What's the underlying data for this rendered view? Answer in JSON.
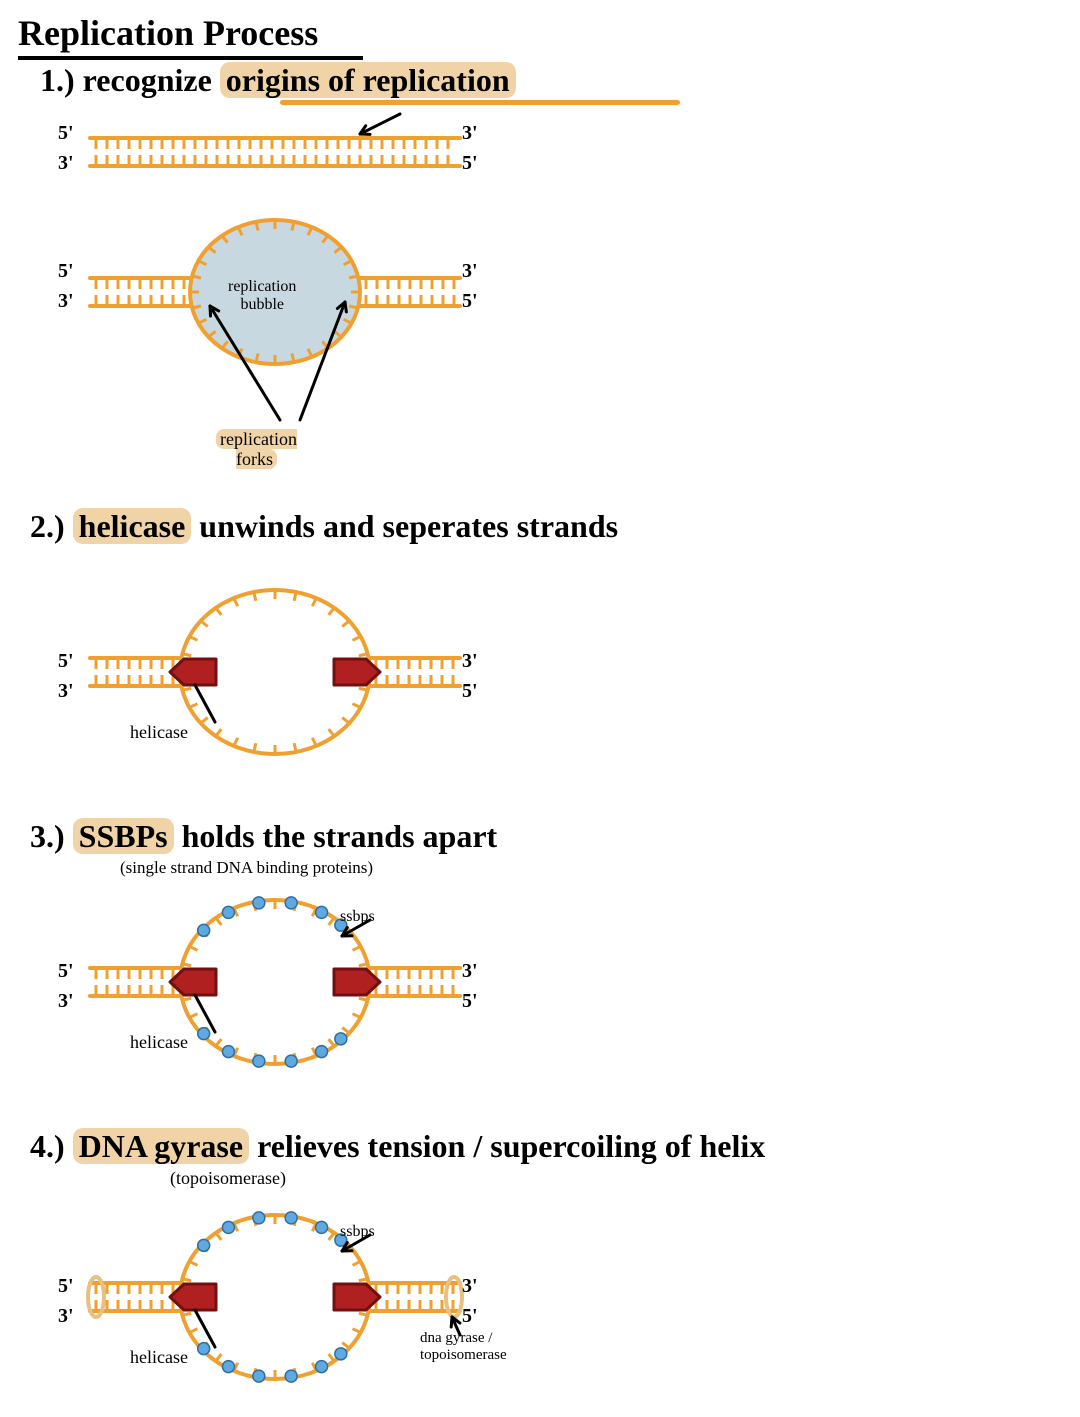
{
  "colors": {
    "dna_stroke": "#f0a030",
    "highlight": "#f0d4a8",
    "bubble_fill": "#c8d8e0",
    "helicase_fill": "#b02020",
    "helicase_stroke": "#701010",
    "ssbp_fill": "#60a8e0",
    "gyrase_stroke": "#e8c080",
    "black": "#000000",
    "bg": "#ffffff"
  },
  "title": "Replication Process",
  "steps": [
    {
      "num": "1.)",
      "keyword": "",
      "rest": "recognize",
      "highlighted_phrase": "origins of replication",
      "sub": "",
      "labels": {
        "five": "5'",
        "three": "3'",
        "rep_bubble": "replication\nbubble",
        "rep_forks": "replication\nforks"
      }
    },
    {
      "num": "2.)",
      "keyword": "helicase",
      "rest": "unwinds and seperates strands",
      "sub": "",
      "labels": {
        "five": "5'",
        "three": "3'",
        "helicase": "helicase"
      }
    },
    {
      "num": "3.)",
      "keyword": "SSBPs",
      "rest": "holds the strands apart",
      "sub": "(single strand DNA binding proteins)",
      "labels": {
        "five": "5'",
        "three": "3'",
        "helicase": "helicase",
        "ssbps": "ssbps"
      }
    },
    {
      "num": "4.)",
      "keyword": "DNA gyrase",
      "rest": "relieves tension / supercoiling of helix",
      "sub": "(topoisomerase)",
      "labels": {
        "five": "5'",
        "three": "3'",
        "helicase": "helicase",
        "ssbps": "ssbps",
        "gyrase": "dna gyrase /\ntopoisomerase"
      }
    }
  ],
  "dna": {
    "stroke_w": 4,
    "rung_stroke_w": 3,
    "rung_gap": 11,
    "rung_len": 9
  }
}
